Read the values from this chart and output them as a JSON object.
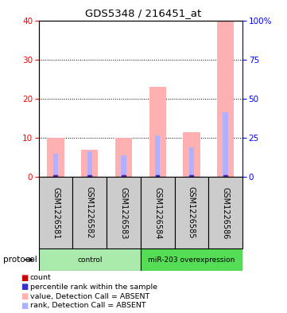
{
  "title": "GDS5348 / 216451_at",
  "samples": [
    "GSM1226581",
    "GSM1226582",
    "GSM1226583",
    "GSM1226584",
    "GSM1226585",
    "GSM1226586"
  ],
  "pink_bar_heights": [
    10,
    7,
    10,
    23,
    11.5,
    40
  ],
  "blue_bar_heights": [
    6,
    6.5,
    5.5,
    10.5,
    7.5,
    16.5
  ],
  "left_ylim": [
    0,
    40
  ],
  "right_ylim": [
    0,
    100
  ],
  "left_yticks": [
    0,
    10,
    20,
    30,
    40
  ],
  "right_yticks": [
    0,
    25,
    50,
    75,
    100
  ],
  "right_yticklabels": [
    "0",
    "25",
    "50",
    "75",
    "100%"
  ],
  "protocol_groups": [
    {
      "label": "control",
      "start": 0,
      "end": 3,
      "color": "#aaeaaa"
    },
    {
      "label": "miR-203 overexpression",
      "start": 3,
      "end": 6,
      "color": "#55dd55"
    }
  ],
  "pink_color": "#ffb0b0",
  "blue_bar_color": "#b0b0ff",
  "red_dot_color": "#cc0000",
  "blue_dot_color": "#3333cc",
  "bg_color": "#ffffff",
  "label_area_color": "#cccccc",
  "bar_width": 0.5,
  "blue_bar_width": 0.15
}
